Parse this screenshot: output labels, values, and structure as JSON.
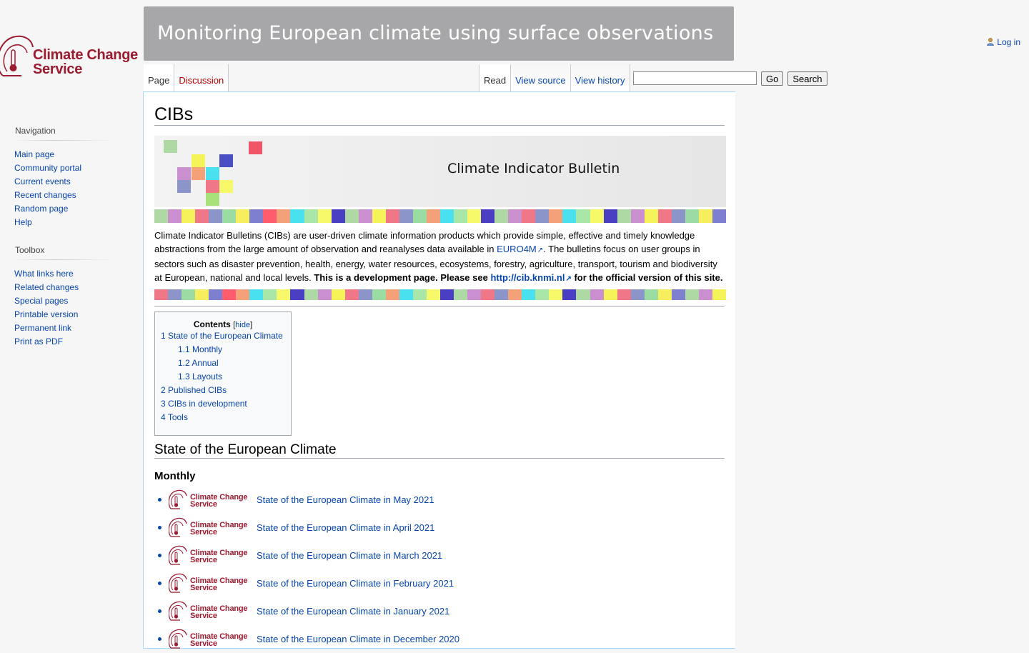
{
  "logo": {
    "text_line1": "Climate Change",
    "text_line2": "Service",
    "color": "#9b1b30"
  },
  "banner": {
    "title": "Monitoring European climate using surface observations"
  },
  "personal": {
    "login": "Log in"
  },
  "tabs": {
    "left": [
      {
        "label": "Page"
      },
      {
        "label": "Discussion"
      }
    ],
    "right": [
      {
        "label": "Read"
      },
      {
        "label": "View source"
      },
      {
        "label": "View history"
      }
    ]
  },
  "search": {
    "placeholder": "",
    "go": "Go",
    "search": "Search"
  },
  "sidebar": {
    "navigation": {
      "title": "Navigation",
      "items": [
        "Main page",
        "Community portal",
        "Current events",
        "Recent changes",
        "Random page",
        "Help"
      ]
    },
    "toolbox": {
      "title": "Toolbox",
      "items": [
        "What links here",
        "Related changes",
        "Special pages",
        "Printable version",
        "Permanent link",
        "Print as PDF"
      ]
    }
  },
  "page": {
    "title": "CIBs",
    "cib_banner_title": "Climate Indicator Bulletin",
    "intro": {
      "p1": "Climate Indicator Bulletins (CIBs) are user-driven climate information products which provide simple, effective and timely knowledge abstractions from the large amount of observation and reanalyses data available in ",
      "link1": "EURO4M",
      "p2": ". The bulletins focus on user groups in sectors such as disaster prevention, health, energy, water resources, ecosystems, forestry, agriculture, transport, tourism and biodiversity at European, national and local levels. ",
      "bold1": "This is a development page. Please see ",
      "link2": "http://cib.knmi.nl",
      "bold2": " for the official version of this site."
    },
    "toc": {
      "title": "Contents",
      "toggle": "hide",
      "items": [
        {
          "num": "1",
          "label": "State of the European Climate",
          "level": 1
        },
        {
          "num": "1.1",
          "label": "Monthly",
          "level": 2
        },
        {
          "num": "1.2",
          "label": "Annual",
          "level": 2
        },
        {
          "num": "1.3",
          "label": "Layouts",
          "level": 2
        },
        {
          "num": "2",
          "label": "Published CIBs",
          "level": 1
        },
        {
          "num": "3",
          "label": "CIBs in development",
          "level": 1
        },
        {
          "num": "4",
          "label": "Tools",
          "level": 1
        }
      ]
    },
    "section_state": "State of the European Climate",
    "subsection_monthly": "Monthly",
    "monthly_items": [
      "State of the European Climate in May 2021",
      "State of the European Climate in April 2021",
      "State of the European Climate in March 2021",
      "State of the European Climate in February 2021",
      "State of the European Climate in January 2021",
      "State of the European Climate in December 2020"
    ]
  },
  "colors": {
    "stripe": [
      "#aed8a4",
      "#c98fcf",
      "#f5f35a",
      "#f07787",
      "#8b95c9",
      "#9bdca2",
      "#f7ee5f",
      "#7f7fcf",
      "#ff5d6d",
      "#f4a17a",
      "#49e0ef",
      "#a8e7a8",
      "#f7f76a",
      "#4a3fc3",
      "#aed8a4",
      "#c98fcf",
      "#f5f35a",
      "#f07787",
      "#8b95c9",
      "#9bdca2",
      "#f4a17a",
      "#49e0ef",
      "#a8e7a8",
      "#f7f76a",
      "#4a3fc3",
      "#aed8a4",
      "#c98fcf",
      "#f07787",
      "#8b95c9",
      "#f4a17a",
      "#49e0ef",
      "#a8e7a8",
      "#f7f76a",
      "#4a3fc3",
      "#aed8a4",
      "#c98fcf",
      "#f5f35a",
      "#f07787",
      "#8b95c9",
      "#9bdca2",
      "#f7ee5f",
      "#7f7fcf"
    ],
    "link": "#0645ad",
    "banner_bg": "#a7a7a9"
  }
}
